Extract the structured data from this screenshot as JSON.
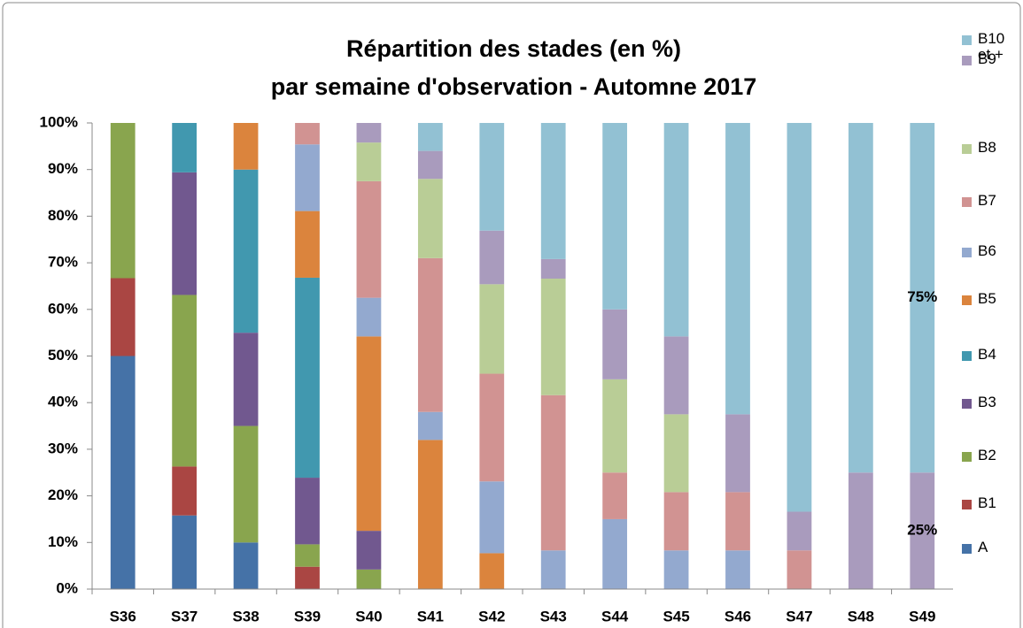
{
  "chart_data": {
    "type": "stacked_bar",
    "title": [
      "Répartition des stades (en %)",
      "par semaine d'observation - Automne 2017"
    ],
    "categories": [
      "S36",
      "S37",
      "S38",
      "S39",
      "S40",
      "S41",
      "S42",
      "S43",
      "S44",
      "S45",
      "S46",
      "S47",
      "S48",
      "S49"
    ],
    "series": [
      {
        "name": "A",
        "color": "#4572a7",
        "values": [
          50,
          15.8,
          10,
          0,
          0,
          0,
          0,
          0,
          0,
          0,
          0,
          0,
          0,
          0
        ]
      },
      {
        "name": "B1",
        "color": "#aa4643",
        "values": [
          16.7,
          10.5,
          0,
          4.8,
          0,
          0,
          0,
          0,
          0,
          0,
          0,
          0,
          0,
          0
        ]
      },
      {
        "name": "B2",
        "color": "#89a54e",
        "values": [
          33.3,
          36.8,
          25,
          4.8,
          4.2,
          0,
          0,
          0,
          0,
          0,
          0,
          0,
          0,
          0
        ]
      },
      {
        "name": "B3",
        "color": "#71588f",
        "values": [
          0,
          26.3,
          20,
          14.3,
          8.3,
          0,
          0,
          0,
          0,
          0,
          0,
          0,
          0,
          0
        ]
      },
      {
        "name": "B4",
        "color": "#4198af",
        "values": [
          0,
          10.6,
          35,
          42.9,
          0,
          0,
          0,
          0,
          0,
          0,
          0,
          0,
          0,
          0
        ]
      },
      {
        "name": "B5",
        "color": "#db843d",
        "values": [
          0,
          0,
          10,
          14.3,
          41.7,
          32,
          7.7,
          0,
          0,
          0,
          0,
          0,
          0,
          0
        ]
      },
      {
        "name": "B6",
        "color": "#93a9cf",
        "values": [
          0,
          0,
          0,
          14.3,
          8.3,
          6,
          15.4,
          8.3,
          15,
          8.3,
          8.3,
          0,
          0,
          0
        ]
      },
      {
        "name": "B7",
        "color": "#d19392",
        "values": [
          0,
          0,
          0,
          4.6,
          25,
          33,
          23.1,
          33.3,
          10,
          12.5,
          12.5,
          8.3,
          0,
          0
        ]
      },
      {
        "name": "B8",
        "color": "#b9cd96",
        "values": [
          0,
          0,
          0,
          0,
          8.3,
          17,
          19.2,
          25,
          20,
          16.7,
          0,
          0,
          0,
          0
        ]
      },
      {
        "name": "B9",
        "color": "#a99bbd",
        "values": [
          0,
          0,
          0,
          0,
          4.2,
          6,
          11.5,
          4.2,
          15,
          16.7,
          16.7,
          8.3,
          25,
          25
        ],
        "value_labels": [
          null,
          null,
          null,
          null,
          null,
          null,
          null,
          null,
          null,
          null,
          null,
          null,
          null,
          "25%"
        ]
      },
      {
        "name": "B10 et +",
        "color": "#92c1d3",
        "values": [
          0,
          0,
          0,
          0,
          0,
          6,
          23.1,
          29.2,
          40,
          45.8,
          62.5,
          83.4,
          75,
          75
        ],
        "value_labels": [
          null,
          null,
          null,
          null,
          null,
          null,
          null,
          null,
          null,
          null,
          null,
          null,
          null,
          "75%"
        ]
      }
    ],
    "ylim": [
      0,
      100
    ],
    "yticks": [
      {
        "value": 0,
        "label": "0%"
      },
      {
        "value": 10,
        "label": "10%"
      },
      {
        "value": 20,
        "label": "20%"
      },
      {
        "value": 30,
        "label": "30%"
      },
      {
        "value": 40,
        "label": "40%"
      },
      {
        "value": 50,
        "label": "50%"
      },
      {
        "value": 60,
        "label": "60%"
      },
      {
        "value": 70,
        "label": "70%"
      },
      {
        "value": 80,
        "label": "80%"
      },
      {
        "value": 90,
        "label": "90%"
      },
      {
        "value": 100,
        "label": "100%"
      }
    ],
    "grid": false,
    "legend": "right"
  }
}
